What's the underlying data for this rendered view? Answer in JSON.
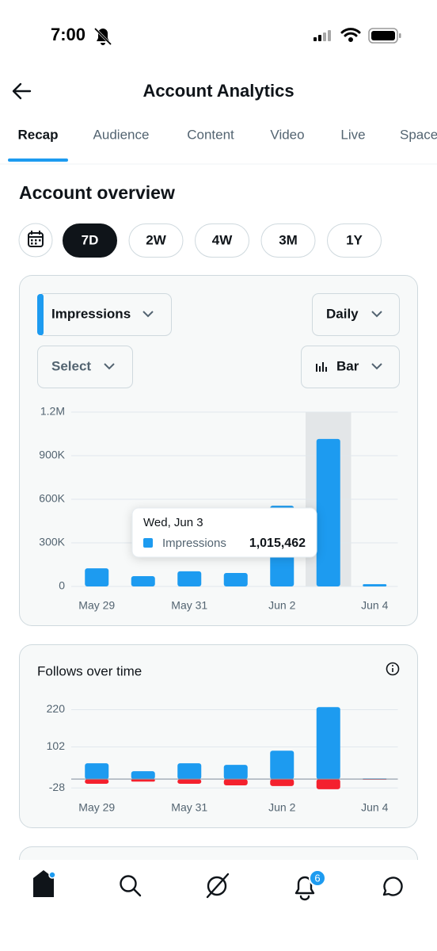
{
  "status_bar": {
    "time": "7:00"
  },
  "header": {
    "title": "Account Analytics"
  },
  "tabs": [
    "Recap",
    "Audience",
    "Content",
    "Video",
    "Live",
    "Spaces"
  ],
  "section_title": "Account overview",
  "periods": [
    "7D",
    "2W",
    "4W",
    "3M",
    "1Y"
  ],
  "controls": {
    "metric": "Impressions",
    "interval": "Daily",
    "compare": "Select",
    "chart_style": "Bar"
  },
  "chart_data": [
    {
      "type": "bar",
      "categories": [
        "May 29",
        null,
        "May 31",
        null,
        "Jun 2",
        null,
        "Jun 4"
      ],
      "series": [
        {
          "name": "Impressions",
          "color": "#1d9bf0",
          "values": [
            125000,
            71000,
            104000,
            93000,
            556000,
            1015462,
            16000
          ],
          "value_labels": [
            null,
            null,
            null,
            null,
            null,
            "1,015,462",
            null
          ]
        }
      ],
      "tooltip_title": "Wed, Jun 3",
      "ylim": [
        0,
        1200000
      ],
      "yticks": [
        0,
        {
          "value": 300000,
          "label": "300K"
        },
        {
          "value": 600000,
          "label": "600K"
        },
        {
          "value": 900000,
          "label": "900K"
        },
        {
          "value": 1200000,
          "label": "1.2M"
        }
      ],
      "grid": true
    },
    {
      "type": "bar",
      "title": "Follows over time",
      "categories": [
        "May 29",
        null,
        "May 31",
        null,
        "Jun 2",
        null,
        "Jun 4"
      ],
      "series": [
        {
          "color": "#1d9bf0",
          "values": [
            50,
            25,
            50,
            45,
            90,
            228,
            2
          ]
        },
        {
          "color": "#f4212e",
          "values": [
            -15,
            -8,
            -15,
            -20,
            -22,
            -32,
            -2
          ]
        }
      ],
      "ylim": [
        -50,
        250
      ],
      "yticks": [
        -28,
        102,
        220
      ],
      "grid": true
    }
  ],
  "notifications_badge": 6
}
